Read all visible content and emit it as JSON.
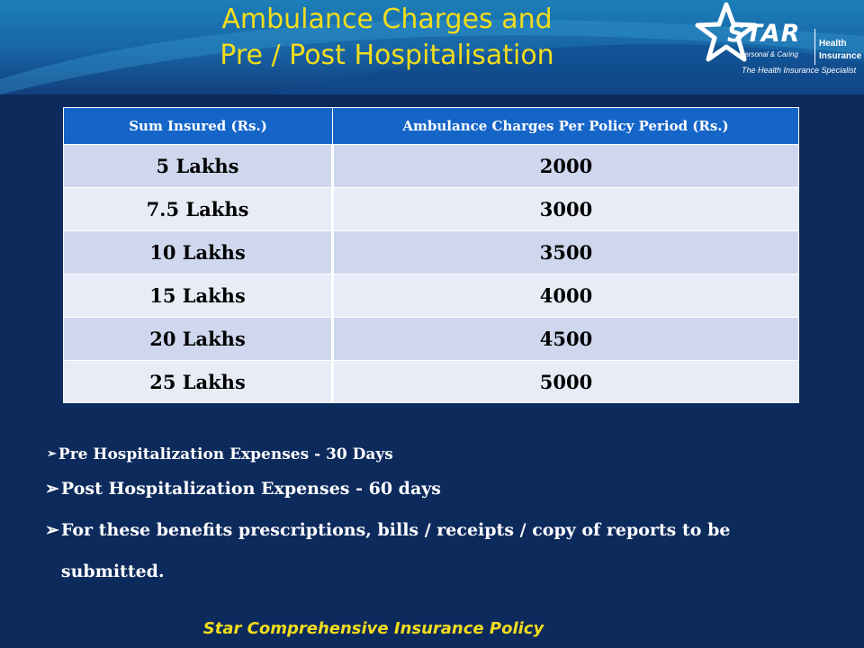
{
  "slide": {
    "title_line1": "Ambulance Charges and",
    "title_line2": "Pre / Post Hospitalisation",
    "footer": "Star Comprehensive Insurance Policy"
  },
  "logo": {
    "word": "STAR",
    "sub": "Personal & Caring",
    "health_line1": "Health",
    "health_line2": "Insurance",
    "tagline": "The Health Insurance Specialist",
    "icon": "star-icon"
  },
  "table": {
    "headers": [
      "Sum Insured (Rs.)",
      "Ambulance Charges Per  Policy Period  (Rs.)"
    ],
    "rows": [
      [
        "5 Lakhs",
        "2000"
      ],
      [
        "7.5 Lakhs",
        "3000"
      ],
      [
        "10 Lakhs",
        "3500"
      ],
      [
        "15 Lakhs",
        "4000"
      ],
      [
        "20 Lakhs",
        "4500"
      ],
      [
        "25 Lakhs",
        "5000"
      ]
    ]
  },
  "bullets": [
    "Pre Hospitalization Expenses  - 30 Days",
    "Post Hospitalization Expenses  - 60 days",
    "For  these benefits prescriptions, bills / receipts / copy of reports to be submitted."
  ],
  "bullet_glyph": "➢",
  "colors": {
    "background": "#0d2a5c",
    "banner": "#1763a4",
    "title": "#f2dc1c",
    "header_row": "#1565c8",
    "row_odd": "#cfd7ee",
    "row_even": "#e8ecf7"
  }
}
